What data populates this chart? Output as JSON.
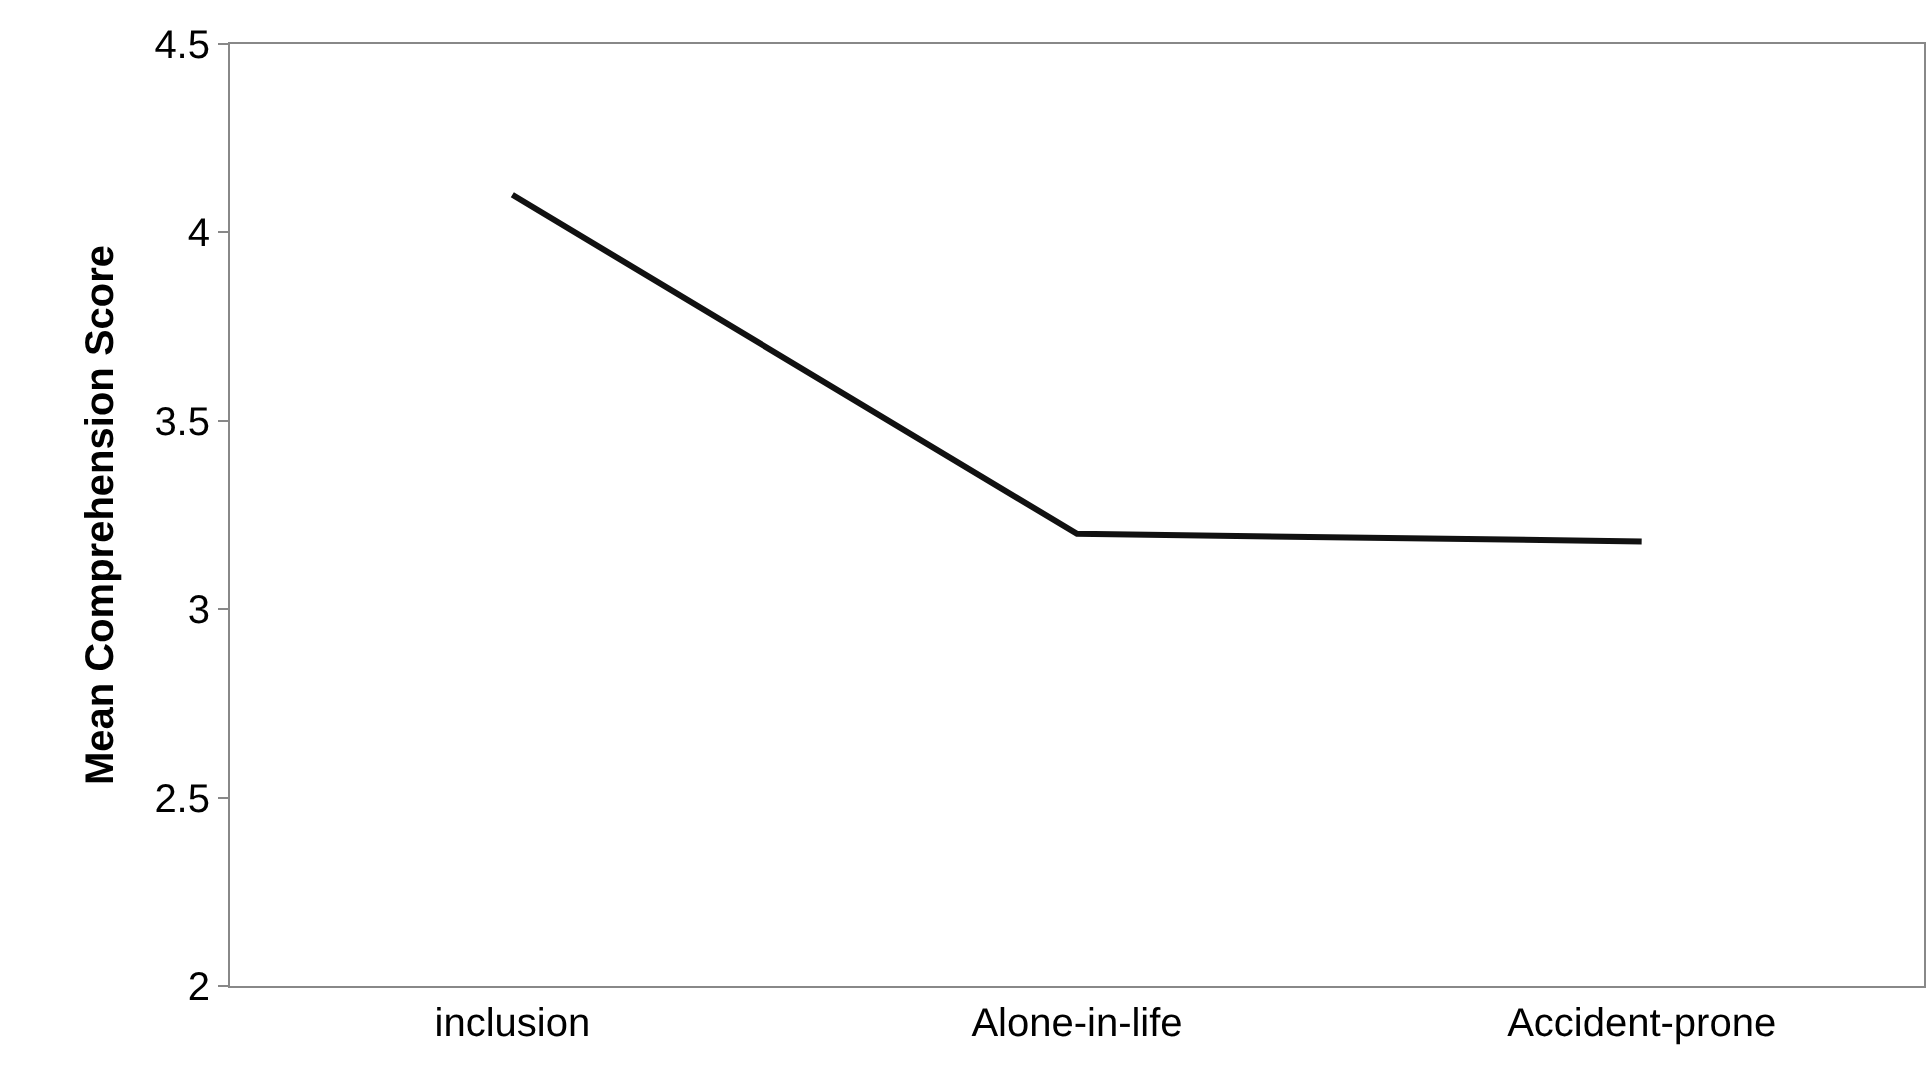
{
  "chart_data": {
    "type": "line",
    "ylabel": "Mean Comprehension Score",
    "categories": [
      "inclusion",
      "Alone-in-life",
      "Accident-prone"
    ],
    "series": [
      {
        "color": "#111111",
        "values": [
          4.1,
          3.2,
          3.18
        ]
      }
    ],
    "ylim": [
      2,
      4.5
    ],
    "yticks": [
      2,
      2.5,
      3,
      3.5,
      4,
      4.5
    ],
    "marker": "none",
    "line_style": "solid"
  }
}
